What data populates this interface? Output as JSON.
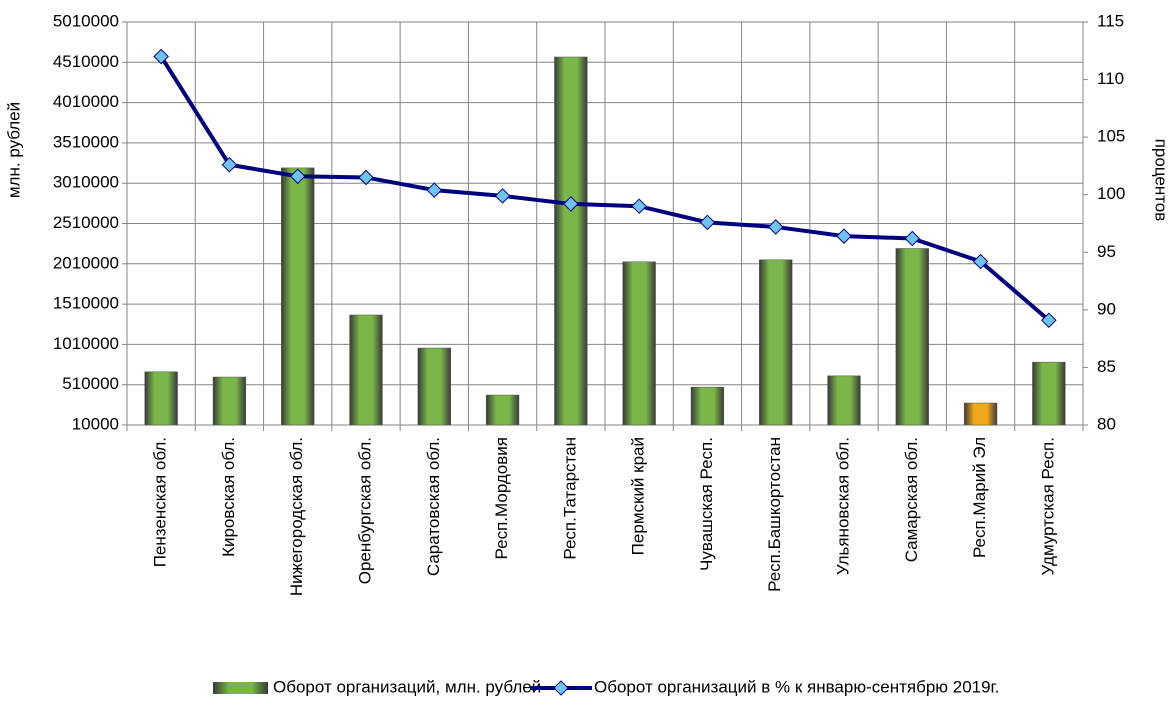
{
  "chart_data": {
    "type": "bar_line",
    "categories": [
      "Пензенская обл.",
      "Кировская обл.",
      "Нижегородская обл.",
      "Оренбургская обл.",
      "Саратовская обл.",
      "Респ.Мордовия",
      "Респ.Татарстан",
      "Пермский край",
      "Чувашская Респ.",
      "Респ.Башкортостан",
      "Ульяновская обл.",
      "Самарская обл.",
      "Респ.Марий Эл",
      "Удмуртская Респ."
    ],
    "series": [
      {
        "name": "Оборот организаций, млн. рублей",
        "type": "bar",
        "color": "#7ab648",
        "point_colors": [
          "#7ab648",
          "#7ab648",
          "#7ab648",
          "#7ab648",
          "#7ab648",
          "#7ab648",
          "#7ab648",
          "#7ab648",
          "#7ab648",
          "#7ab648",
          "#7ab648",
          "#7ab648",
          "#f0a818",
          "#7ab648"
        ],
        "values": [
          670000,
          605000,
          3200000,
          1375000,
          965000,
          382000,
          4576000,
          2035000,
          480000,
          2060000,
          620000,
          2200000,
          283000,
          790000
        ]
      },
      {
        "name": "Оборот организаций в % к январю-сентябрю 2019г.",
        "type": "line",
        "axis": "y2",
        "color": "#000080",
        "marker_color": "#6fc3f0",
        "values": [
          112.0,
          102.6,
          101.6,
          101.5,
          100.4,
          99.9,
          99.2,
          99.0,
          97.6,
          97.2,
          96.4,
          96.2,
          94.2,
          89.1
        ]
      }
    ],
    "ylabel": "млн. рублей",
    "y2label": "процентов",
    "ylim": [
      10000,
      5010000
    ],
    "yticks": [
      10000,
      510000,
      1010000,
      1510000,
      2010000,
      2510000,
      3010000,
      3510000,
      4010000,
      4510000,
      5010000
    ],
    "y2lim": [
      80,
      115
    ],
    "y2ticks": [
      80,
      85,
      90,
      95,
      100,
      105,
      110,
      115
    ],
    "grid": true
  }
}
